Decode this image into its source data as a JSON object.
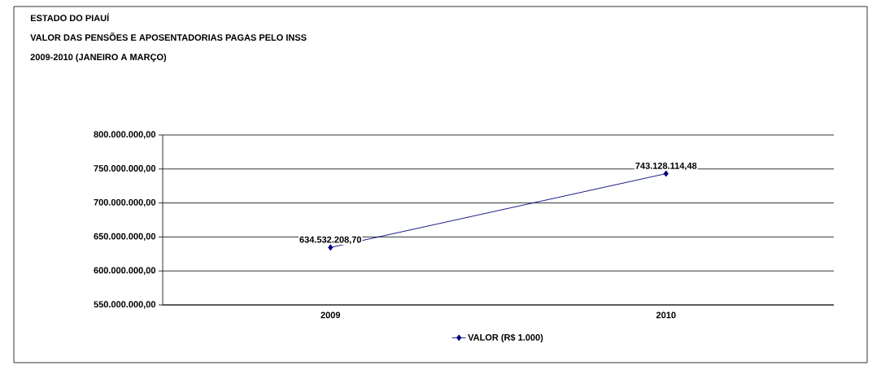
{
  "chart_data": {
    "type": "line",
    "title": "ESTADO DO PIAUÍ",
    "subtitle": "VALOR DAS PENSÕES E APOSENTADORIAS PAGAS PELO INSS",
    "annotations": [
      "2009-2010 (JANEIRO A MARÇO)"
    ],
    "categories": [
      "2009",
      "2010"
    ],
    "series": [
      {
        "name": "VALOR (R$ 1.000)",
        "color": "#000080",
        "values": [
          634532208.7,
          743128114.48
        ],
        "value_labels": [
          "634.532.208,70",
          "743.128.114,48"
        ]
      }
    ],
    "ylim": [
      550000000,
      800000000
    ],
    "yticks": [
      {
        "value": 550000000,
        "label": "550.000.000,00"
      },
      {
        "value": 600000000,
        "label": "600.000.000,00"
      },
      {
        "value": 650000000,
        "label": "650.000.000,00"
      },
      {
        "value": 700000000,
        "label": "700.000.000,00"
      },
      {
        "value": 750000000,
        "label": "750.000.000,00"
      },
      {
        "value": 800000000,
        "label": "800.000.000,00"
      }
    ],
    "grid": "y",
    "legend": "bottom",
    "marker": "diamond",
    "line_style": "solid"
  }
}
